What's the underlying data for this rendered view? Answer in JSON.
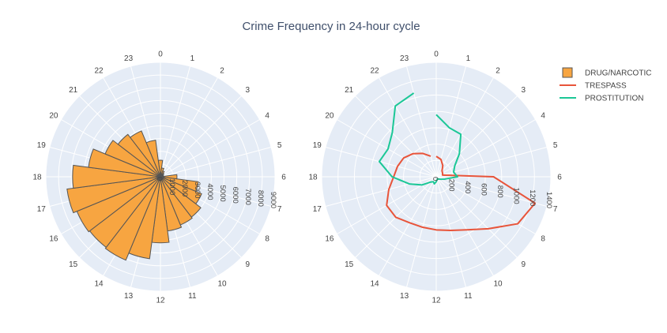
{
  "chart_data": {
    "title": "Crime Frequency in 24-hour cycle",
    "angular_ticks": [
      "0",
      "1",
      "2",
      "3",
      "4",
      "5",
      "6",
      "7",
      "8",
      "9",
      "10",
      "11",
      "12",
      "13",
      "14",
      "15",
      "16",
      "17",
      "18",
      "19",
      "20",
      "21",
      "22",
      "23"
    ],
    "angular_direction": "clockwise",
    "legend_placement": "top-right",
    "colors": {
      "drug": "#f7a541",
      "drug_outline": "#555555",
      "trespass": "#e8543a",
      "prostitution": "#1bc796",
      "polar_bg": "#e5ecf6",
      "grid": "#ffffff"
    },
    "legend": [
      {
        "name": "DRUG/NARCOTIC",
        "symbol": "bar",
        "color": "#f7a541"
      },
      {
        "name": "TRESPASS",
        "symbol": "line",
        "color": "#e8543a"
      },
      {
        "name": "PROSTITUTION",
        "symbol": "line",
        "color": "#1bc796"
      }
    ],
    "charts": [
      {
        "type": "barpolar",
        "radial_range": [
          0,
          9000
        ],
        "radial_ticks": [
          "0",
          "1000",
          "2000",
          "3000",
          "4000",
          "5000",
          "6000",
          "7000",
          "8000",
          "9000"
        ],
        "series": [
          {
            "name": "DRUG/NARCOTIC",
            "values": [
              1300,
              700,
              500,
              350,
              250,
              250,
              1300,
              3000,
              3500,
              4000,
              4100,
              4300,
              5200,
              6500,
              7100,
              7000,
              7100,
              7400,
              6900,
              5700,
              4700,
              4200,
              3900,
              2900
            ]
          }
        ]
      },
      {
        "type": "line",
        "radial_range": [
          0,
          1400
        ],
        "radial_ticks": [
          "0",
          "200",
          "400",
          "600",
          "800",
          "1000",
          "1200",
          "1400"
        ],
        "series": [
          {
            "name": "TRESPASS",
            "values": [
              250,
              220,
              160,
              100,
              90,
              80,
              700,
              1250,
              1150,
              900,
              750,
              680,
              650,
              640,
              650,
              700,
              700,
              600,
              520,
              490,
              460,
              400,
              330,
              260
            ]
          },
          {
            "name": "PROSTITUTION",
            "values": [
              760,
              620,
              600,
              400,
              260,
              220,
              260,
              110,
              60,
              40,
              30,
              40,
              60,
              90,
              70,
              90,
              200,
              340,
              540,
              720,
              680,
              760,
              1000,
              1060
            ]
          }
        ]
      }
    ]
  }
}
